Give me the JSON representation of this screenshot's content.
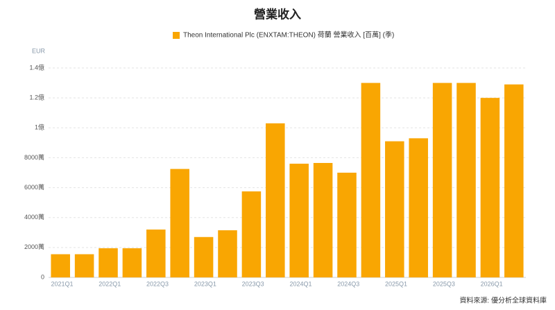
{
  "chart_data": {
    "type": "bar",
    "title": "營業收入",
    "legend": "Theon International Plc (ENXTAM:THEON) 荷蘭 營業收入 [百萬] (季)",
    "y_unit": "EUR",
    "source": "資料來源: 優分析全球資料庫",
    "categories": [
      "2021Q1",
      null,
      "2022Q1",
      null,
      "2022Q3",
      null,
      "2023Q1",
      null,
      "2023Q3",
      null,
      "2024Q1",
      null,
      "2024Q3",
      null,
      "2025Q1",
      null,
      "2025Q3",
      null,
      "2026Q1",
      null
    ],
    "values": [
      1550,
      1550,
      1950,
      1950,
      3200,
      7250,
      2700,
      3150,
      5750,
      10300,
      7600,
      7650,
      7000,
      13000,
      9100,
      9300,
      13000,
      13000,
      12000,
      12900
    ],
    "color": "#f9a602",
    "ylim": [
      0,
      14000
    ],
    "yticks": [
      0,
      {
        "value": 2000,
        "label": "2000萬"
      },
      {
        "value": 4000,
        "label": "4000萬"
      },
      {
        "value": 6000,
        "label": "6000萬"
      },
      {
        "value": 8000,
        "label": "8000萬"
      },
      {
        "value": 10000,
        "label": "1億"
      },
      {
        "value": 12000,
        "label": "1.2億"
      },
      {
        "value": 14000,
        "label": "1.4億"
      }
    ],
    "grid": true
  }
}
